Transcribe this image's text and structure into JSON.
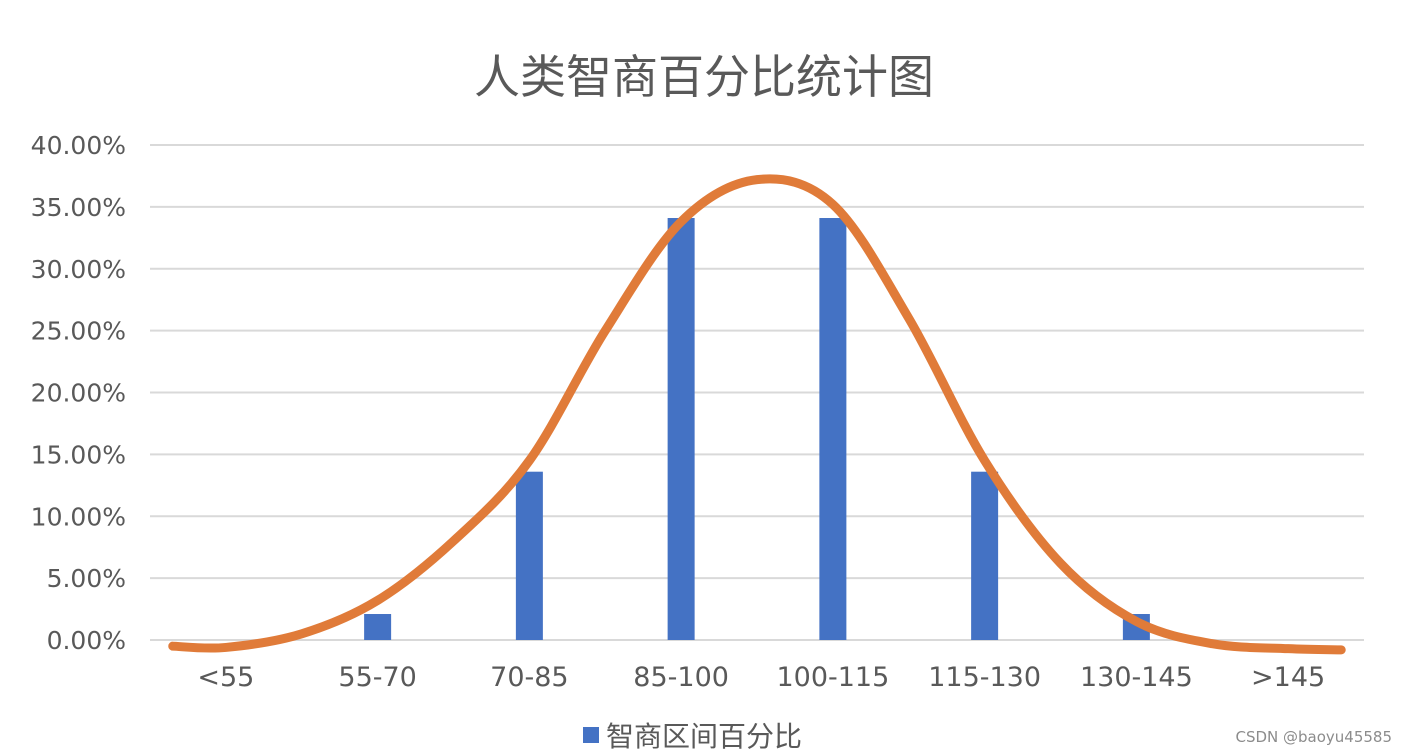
{
  "chart_data": {
    "type": "bar",
    "title": "人类智商百分比统计图",
    "categories": [
      "<55",
      "55-70",
      "70-85",
      "85-100",
      "100-115",
      "115-130",
      "130-145",
      ">145"
    ],
    "series": [
      {
        "name": "智商区间百分比",
        "values": [
          0.0,
          2.1,
          13.6,
          34.1,
          34.1,
          13.6,
          2.1,
          0.0
        ],
        "color": "#4472c4"
      }
    ],
    "curve": {
      "color": "#e07b39",
      "points": [
        {
          "x": -0.35,
          "y": -0.5
        },
        {
          "x": 0.0,
          "y": -0.6
        },
        {
          "x": 0.5,
          "y": 0.5
        },
        {
          "x": 1.0,
          "y": 3.2
        },
        {
          "x": 1.5,
          "y": 8.0
        },
        {
          "x": 2.0,
          "y": 14.5
        },
        {
          "x": 2.5,
          "y": 25.0
        },
        {
          "x": 3.0,
          "y": 33.8
        },
        {
          "x": 3.5,
          "y": 37.2
        },
        {
          "x": 4.0,
          "y": 35.2
        },
        {
          "x": 4.5,
          "y": 26.0
        },
        {
          "x": 5.0,
          "y": 14.5
        },
        {
          "x": 5.5,
          "y": 6.2
        },
        {
          "x": 6.0,
          "y": 1.5
        },
        {
          "x": 6.5,
          "y": -0.3
        },
        {
          "x": 7.0,
          "y": -0.7
        },
        {
          "x": 7.35,
          "y": -0.8
        }
      ]
    },
    "y_ticks": [
      "0.00%",
      "5.00%",
      "10.00%",
      "15.00%",
      "20.00%",
      "25.00%",
      "30.00%",
      "35.00%",
      "40.00%"
    ],
    "ylim": [
      0,
      40
    ],
    "grid": true,
    "legend_position": "bottom"
  },
  "watermark": "CSDN @baoyu45585"
}
